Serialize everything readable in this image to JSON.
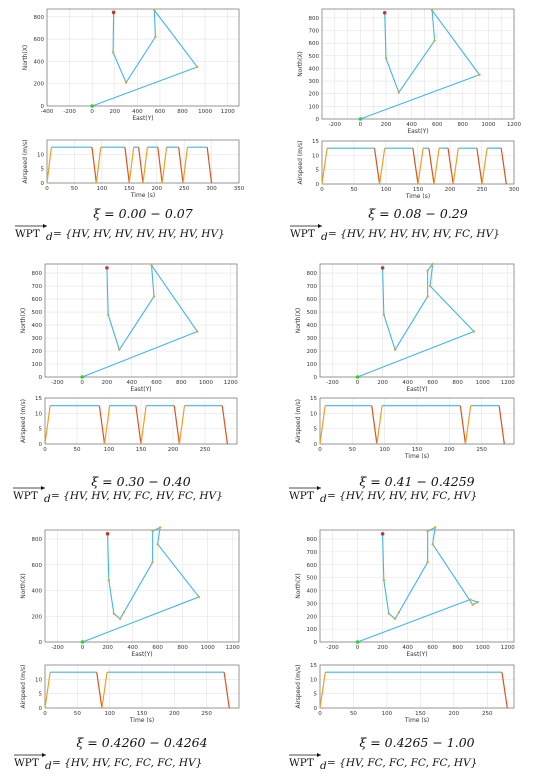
{
  "colors": {
    "path": "#41b6e6",
    "accel": "#f0a020",
    "decel": "#d9541e",
    "start": "#32cd32",
    "end": "#c0392b",
    "grid": "#e3e3e3",
    "frame": "#6f6f6f"
  },
  "chart_data": [
    {
      "type": "line",
      "map": {
        "xlabel": "East(Y)",
        "ylabel": "North(X)",
        "xlim": [
          -400,
          1300
        ],
        "ylim": [
          0,
          870
        ],
        "xticks": [
          -400,
          -200,
          0,
          200,
          400,
          600,
          800,
          1000,
          1200
        ],
        "yticks": [
          0,
          200,
          400,
          600,
          800
        ],
        "path": [
          [
            0,
            0
          ],
          [
            930,
            350
          ],
          [
            550,
            860
          ],
          [
            560,
            620
          ],
          [
            300,
            210
          ],
          [
            185,
            480
          ],
          [
            190,
            840
          ]
        ],
        "wp_kinds": [
          "HV",
          "HV",
          "HV",
          "HV",
          "HV",
          "HV",
          "HV"
        ]
      },
      "speed": {
        "xlabel": "Time (s)",
        "ylabel": "Airspeed (m/s)",
        "xlim": [
          0,
          350
        ],
        "ylim": [
          0,
          15
        ],
        "xticks": [
          0,
          50,
          100,
          150,
          200,
          250,
          300,
          350
        ],
        "yticks": [
          0,
          5,
          10
        ],
        "cruise": 12.5,
        "stops": [
          0,
          90,
          150,
          175,
          210,
          248,
          300
        ]
      },
      "caption": "ξ = 0.00 − 0.07",
      "formula": "= {HV, HV, HV, HV, HV, HV, HV}"
    },
    {
      "type": "line",
      "map": {
        "xlabel": "East(Y)",
        "ylabel": "North(X)",
        "xlim": [
          -300,
          1200
        ],
        "ylim": [
          0,
          870
        ],
        "xticks": [
          -200,
          -100,
          0,
          100,
          200,
          300,
          400,
          500,
          600,
          700,
          800,
          900,
          1000,
          1100,
          1200
        ],
        "xticklabels": [
          -200,
          "",
          0,
          "",
          200,
          "",
          400,
          "",
          600,
          "",
          800,
          "",
          1000,
          "",
          1200
        ],
        "yticks": [
          0,
          100,
          200,
          300,
          400,
          500,
          600,
          700,
          800
        ],
        "path": [
          [
            0,
            0
          ],
          [
            930,
            350
          ],
          [
            560,
            860
          ],
          [
            580,
            620
          ],
          [
            300,
            210
          ],
          [
            200,
            480
          ],
          [
            190,
            840
          ]
        ],
        "wp_kinds": [
          "HV",
          "HV",
          "HV",
          "HV",
          "HV",
          "FC",
          "HV"
        ]
      },
      "speed": {
        "xlabel": "Time (s)",
        "ylabel": "Airspeed (m/s)",
        "xlim": [
          0,
          300
        ],
        "ylim": [
          0,
          15
        ],
        "xticks": [
          0,
          50,
          100,
          150,
          200,
          250,
          300
        ],
        "yticks": [
          0,
          5,
          10,
          15
        ],
        "cruise": 12.5,
        "stops": [
          0,
          90,
          150,
          175,
          205,
          250,
          288
        ]
      },
      "caption": "ξ = 0.08 − 0.29",
      "formula": "= {HV, HV, HV, HV, HV, FC, HV}"
    },
    {
      "type": "line",
      "map": {
        "xlabel": "East(Y)",
        "ylabel": "North(X)",
        "xlim": [
          -300,
          1250
        ],
        "ylim": [
          0,
          870
        ],
        "xticks": [
          -200,
          0,
          200,
          400,
          600,
          800,
          1000,
          1200
        ],
        "yticks": [
          0,
          100,
          200,
          300,
          400,
          500,
          600,
          700,
          800
        ],
        "path": [
          [
            0,
            0
          ],
          [
            930,
            350
          ],
          [
            560,
            860
          ],
          [
            580,
            620
          ],
          [
            300,
            210
          ],
          [
            210,
            480
          ],
          [
            200,
            840
          ]
        ],
        "wp_kinds": [
          "HV",
          "HV",
          "HV",
          "FC",
          "HV",
          "FC",
          "HV"
        ]
      },
      "speed": {
        "xlabel": "",
        "ylabel": "Airspeed (m/s)",
        "xlim": [
          0,
          300
        ],
        "ylim": [
          0,
          15
        ],
        "xticks": [
          0,
          50,
          100,
          150,
          200,
          250
        ],
        "yticks": [
          0,
          5,
          10,
          15
        ],
        "cruise": 12.5,
        "stops": [
          0,
          93,
          150,
          210,
          285
        ]
      },
      "caption": "ξ = 0.30 − 0.40",
      "formula": "= {HV, HV, HV, FC, HV, FC, HV}"
    },
    {
      "type": "line",
      "map": {
        "xlabel": "East(Y)",
        "ylabel": "North(X)",
        "xlim": [
          -300,
          1250
        ],
        "ylim": [
          0,
          870
        ],
        "xticks": [
          -200,
          0,
          200,
          400,
          600,
          800,
          1000,
          1200
        ],
        "yticks": [
          0,
          100,
          200,
          300,
          400,
          500,
          600,
          700,
          800
        ],
        "path": [
          [
            0,
            0
          ],
          [
            930,
            350
          ],
          [
            580,
            700
          ],
          [
            600,
            870
          ],
          [
            560,
            820
          ],
          [
            560,
            620
          ],
          [
            300,
            210
          ],
          [
            210,
            480
          ],
          [
            200,
            840
          ]
        ],
        "wp_kinds": [
          "HV",
          "HV",
          "HV",
          "HV",
          "FC",
          "HV"
        ]
      },
      "speed": {
        "xlabel": "Time (s)",
        "ylabel": "Airspeed (m/s)",
        "xlim": [
          0,
          300
        ],
        "ylim": [
          0,
          15
        ],
        "xticks": [
          0,
          50,
          100,
          150,
          200,
          250
        ],
        "yticks": [
          0,
          5,
          10,
          15
        ],
        "cruise": 12.5,
        "stops": [
          0,
          88,
          225,
          285
        ]
      },
      "caption": "ξ = 0.41 − 0.4259",
      "formula": "= {HV, HV, HV, HV, FC, HV}"
    },
    {
      "type": "line",
      "map": {
        "xlabel": "East(Y)",
        "ylabel": "North(X)",
        "xlim": [
          -300,
          1250
        ],
        "ylim": [
          0,
          870
        ],
        "xticks": [
          -200,
          0,
          200,
          400,
          600,
          800,
          1000,
          1200
        ],
        "yticks": [
          0,
          200,
          400,
          600,
          800
        ],
        "path": [
          [
            0,
            0
          ],
          [
            930,
            350
          ],
          [
            600,
            760
          ],
          [
            620,
            890
          ],
          [
            560,
            860
          ],
          [
            560,
            620
          ],
          [
            330,
            230
          ],
          [
            300,
            180
          ],
          [
            250,
            220
          ],
          [
            210,
            480
          ],
          [
            200,
            840
          ]
        ],
        "wp_kinds": [
          "HV",
          "HV",
          "FC",
          "FC",
          "FC",
          "HV"
        ]
      },
      "speed": {
        "xlabel": "Time (s)",
        "ylabel": "Airspeed (m/s)",
        "xlim": [
          0,
          300
        ],
        "ylim": [
          0,
          15
        ],
        "xticks": [
          0,
          50,
          100,
          150,
          200,
          250
        ],
        "yticks": [
          0,
          5,
          10
        ],
        "cruise": 12.5,
        "stops": [
          0,
          88,
          285
        ]
      },
      "caption": "ξ = 0.4260 − 0.4264",
      "formula": "= {HV, HV, FC, FC, FC, HV}"
    },
    {
      "type": "line",
      "map": {
        "xlabel": "East(Y)",
        "ylabel": "North(X)",
        "xlim": [
          -300,
          1250
        ],
        "ylim": [
          0,
          870
        ],
        "xticks": [
          -200,
          0,
          200,
          400,
          600,
          800,
          1000,
          1200
        ],
        "yticks": [
          0,
          100,
          200,
          300,
          400,
          500,
          600,
          700,
          800
        ],
        "path": [
          [
            0,
            0
          ],
          [
            900,
            330
          ],
          [
            960,
            310
          ],
          [
            920,
            290
          ],
          [
            600,
            760
          ],
          [
            620,
            890
          ],
          [
            560,
            860
          ],
          [
            560,
            620
          ],
          [
            330,
            230
          ],
          [
            300,
            180
          ],
          [
            250,
            220
          ],
          [
            210,
            480
          ],
          [
            200,
            840
          ]
        ],
        "wp_kinds": [
          "HV",
          "FC",
          "FC",
          "FC",
          "FC",
          "HV"
        ]
      },
      "speed": {
        "xlabel": "Time (s)",
        "ylabel": "Airspeed (m/s)",
        "xlim": [
          0,
          290
        ],
        "ylim": [
          0,
          15
        ],
        "xticks": [
          0,
          50,
          100,
          150,
          200,
          250
        ],
        "yticks": [
          0,
          5,
          10,
          15
        ],
        "cruise": 12.5,
        "stops": [
          0,
          280
        ]
      },
      "caption": "ξ = 0.4265 − 1.00",
      "formula": "= {HV, FC, FC, FC, FC, HV}"
    }
  ],
  "formula_lhs": "WPT",
  "formula_sub": "d"
}
